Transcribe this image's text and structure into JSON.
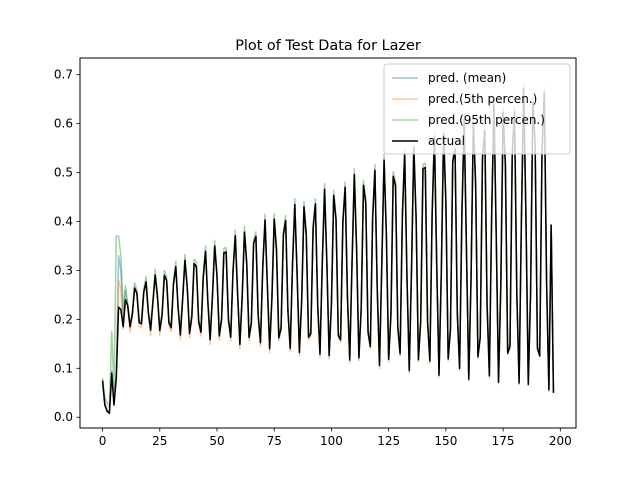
{
  "chart_data": {
    "type": "line",
    "title": "Plot of Test Data for Lazer",
    "xlabel": "",
    "ylabel": "",
    "xlim": [
      -9.85,
      206.85
    ],
    "ylim": [
      -0.022,
      0.734
    ],
    "xticks": [
      0,
      25,
      50,
      75,
      100,
      125,
      150,
      175,
      200
    ],
    "yticks": [
      0.0,
      0.1,
      0.2,
      0.3,
      0.4,
      0.5,
      0.6,
      0.7
    ],
    "ytick_labels": [
      "0.0",
      "0.1",
      "0.2",
      "0.3",
      "0.4",
      "0.5",
      "0.6",
      "0.7"
    ],
    "legend_position": "upper right",
    "grid": false,
    "x_count": 198,
    "series": [
      {
        "name": "pred. (mean)",
        "color": "#1f77b4",
        "alpha": 0.45,
        "lw": 1.5,
        "keypoints": [
          [
            0,
            0.075
          ],
          [
            1,
            0.03
          ],
          [
            2,
            0.015
          ],
          [
            3,
            0.01
          ],
          [
            4,
            0.095
          ],
          [
            5,
            0.04
          ],
          [
            6,
            0.09
          ],
          [
            7,
            0.33
          ],
          [
            8,
            0.3
          ],
          [
            9,
            0.2
          ],
          [
            10,
            0.26
          ]
        ],
        "amp_factor": 1.0,
        "amp_offset": 0.0,
        "base_offset": 0.005
      },
      {
        "name": "pred.(5th percen.)",
        "color": "#ff7f0e",
        "alpha": 0.45,
        "lw": 1.5,
        "keypoints": [
          [
            0,
            0.07
          ],
          [
            1,
            0.025
          ],
          [
            2,
            0.012
          ],
          [
            3,
            0.008
          ],
          [
            4,
            0.08
          ],
          [
            5,
            0.03
          ],
          [
            6,
            0.08
          ],
          [
            7,
            0.28
          ],
          [
            8,
            0.26
          ],
          [
            9,
            0.18
          ],
          [
            10,
            0.24
          ]
        ],
        "amp_factor": 0.97,
        "amp_offset": 0.0,
        "base_offset": -0.012
      },
      {
        "name": "pred.(95th percen.)",
        "color": "#2ca02c",
        "alpha": 0.45,
        "lw": 1.5,
        "keypoints": [
          [
            0,
            0.08
          ],
          [
            1,
            0.04
          ],
          [
            2,
            0.03
          ],
          [
            3,
            0.02
          ],
          [
            4,
            0.175
          ],
          [
            5,
            0.06
          ],
          [
            6,
            0.37
          ],
          [
            7,
            0.37
          ],
          [
            8,
            0.33
          ],
          [
            9,
            0.22
          ],
          [
            10,
            0.27
          ]
        ],
        "amp_factor": 1.0,
        "amp_offset": 0.012,
        "base_offset": 0.008
      },
      {
        "name": "actual",
        "color": "#000000",
        "alpha": 1.0,
        "lw": 1.5,
        "keypoints": [
          [
            0,
            0.075
          ],
          [
            1,
            0.025
          ],
          [
            2,
            0.012
          ],
          [
            3,
            0.008
          ],
          [
            4,
            0.09
          ],
          [
            5,
            0.025
          ],
          [
            6,
            0.08
          ],
          [
            7,
            0.225
          ],
          [
            8,
            0.22
          ],
          [
            9,
            0.185
          ],
          [
            10,
            0.24
          ]
        ],
        "amp_factor": 1.0,
        "amp_offset": 0.0,
        "base_offset": 0.0
      }
    ],
    "oscillation": {
      "start_x": 10,
      "end_x": 196,
      "period": 4.35,
      "peak_start": 0.26,
      "peak_end": 0.7,
      "trough_start": 0.185,
      "trough_end": 0.05,
      "final_values": [
        [
          197,
          0.05
        ]
      ]
    }
  }
}
